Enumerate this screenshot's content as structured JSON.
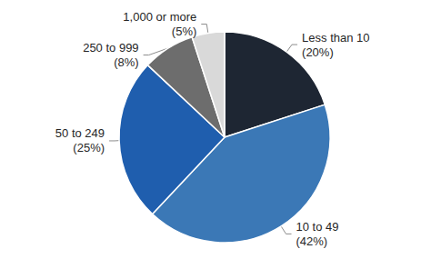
{
  "chart_data": {
    "type": "pie",
    "categories": [
      "Less than 10",
      "10 to 49",
      "50 to 249",
      "250 to 999",
      "1,000 or more"
    ],
    "values": [
      20,
      42,
      25,
      8,
      5
    ],
    "value_labels": [
      "(20%)",
      "(42%)",
      "(25%)",
      "(8%)",
      "(5%)"
    ],
    "colors": [
      "#1e2633",
      "#3b78b6",
      "#1f5eae",
      "#6d6d6d",
      "#d9d9d9"
    ],
    "data_labels": true
  }
}
